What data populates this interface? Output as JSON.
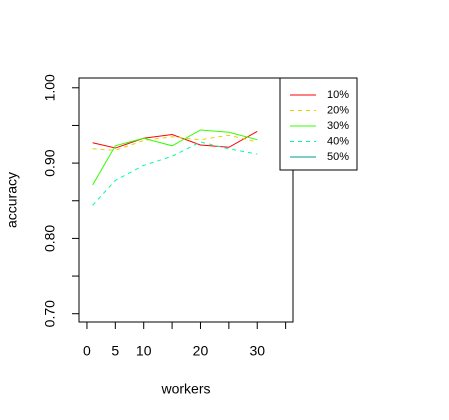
{
  "chart_data": {
    "type": "line",
    "xlabel": "workers",
    "ylabel": "accuracy",
    "x": [
      1,
      5,
      10,
      15,
      20,
      25,
      30
    ],
    "series": [
      {
        "name": "10%",
        "color": "#ff0000",
        "dashed": false,
        "values": [
          0.927,
          0.92,
          0.933,
          0.938,
          0.924,
          0.921,
          0.942
        ]
      },
      {
        "name": "20%",
        "color": "#e6d000",
        "dashed": true,
        "values": [
          0.919,
          0.917,
          0.93,
          0.935,
          0.931,
          0.937,
          0.928
        ]
      },
      {
        "name": "30%",
        "color": "#33ff00",
        "dashed": false,
        "values": [
          0.871,
          0.923,
          0.933,
          0.923,
          0.944,
          0.941,
          0.931
        ]
      },
      {
        "name": "40%",
        "color": "#00ff99",
        "dashed": true,
        "values": [
          0.844,
          0.877,
          0.897,
          0.909,
          0.928,
          0.919,
          0.912
        ]
      },
      {
        "name": "50%",
        "color": "#009999",
        "dashed": false,
        "values": [
          null,
          null,
          null,
          null,
          null,
          null,
          null
        ]
      }
    ],
    "xlim": [
      -1.4,
      36.3
    ],
    "xticks": [
      0,
      5,
      10,
      {
        "value": 15,
        "label": null
      },
      20,
      {
        "value": 25,
        "label": null
      },
      30,
      {
        "value": 35,
        "label": null
      }
    ],
    "ylim": [
      0.689,
      1.013
    ],
    "yticks": [
      {
        "value": 0.7,
        "label": "0.70"
      },
      {
        "value": 0.75,
        "label": null
      },
      {
        "value": 0.8,
        "label": "0.80"
      },
      {
        "value": 0.85,
        "label": null
      },
      {
        "value": 0.9,
        "label": "0.90"
      },
      {
        "value": 0.95,
        "label": null
      },
      {
        "value": 1.0,
        "label": "1.00"
      }
    ],
    "grid": false,
    "legend": "top-right"
  }
}
